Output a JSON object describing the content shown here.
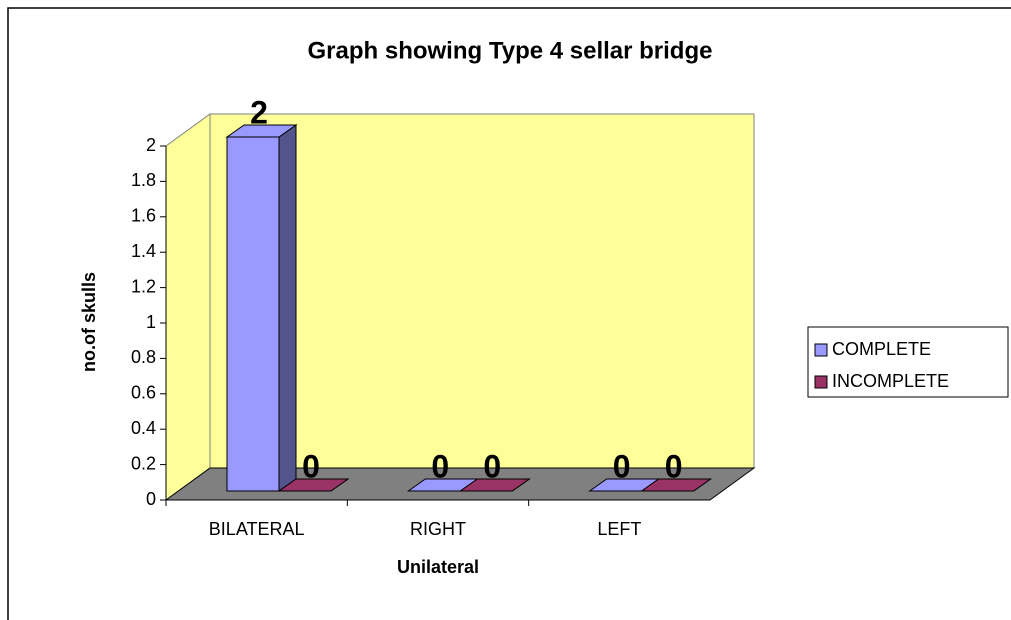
{
  "chart_data": {
    "type": "bar3d",
    "title": "Graph showing Type 4 sellar bridge",
    "categories": [
      "BILATERAL",
      "RIGHT",
      "LEFT"
    ],
    "series": [
      {
        "name": "COMPLETE",
        "color": "#9999ff",
        "values": [
          2,
          0,
          0
        ]
      },
      {
        "name": "INCOMPLETE",
        "color": "#993366",
        "values": [
          0,
          0,
          0
        ]
      }
    ],
    "xlabel": "Unilateral",
    "ylabel": "no.of skulls",
    "ylim": [
      0,
      2
    ],
    "yticks": [
      0,
      0.2,
      0.4,
      0.6,
      0.8,
      1,
      1.2,
      1.4,
      1.6,
      1.8,
      2
    ],
    "legend": "right"
  }
}
